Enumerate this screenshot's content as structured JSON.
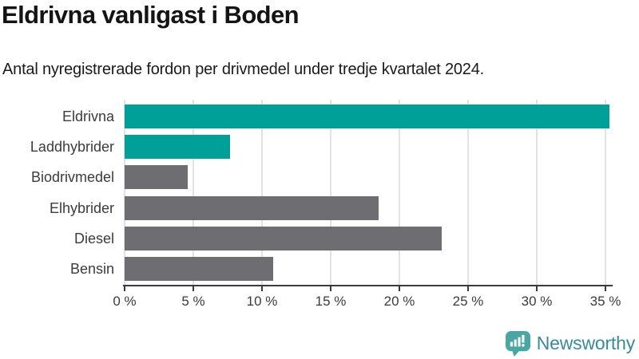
{
  "header": {
    "title": "Eldrivna vanligast i Boden",
    "subtitle": "Antal nyregistrerade fordon per drivmedel under tredje kvartalet 2024."
  },
  "chart_data": {
    "type": "bar",
    "orientation": "horizontal",
    "title": "Eldrivna vanligast i Boden",
    "subtitle": "Antal nyregistrerade fordon per drivmedel under tredje kvartalet 2024.",
    "categories": [
      "Eldrivna",
      "Laddhybrider",
      "Biodrivmedel",
      "Elhybrider",
      "Diesel",
      "Bensin"
    ],
    "values": [
      35.3,
      7.7,
      4.6,
      18.5,
      23.1,
      10.8
    ],
    "unit": "%",
    "xlabel": "",
    "ylabel": "",
    "xlim": [
      0,
      35.4
    ],
    "x_ticks": [
      0,
      5,
      10,
      15,
      20,
      25,
      30,
      35
    ],
    "x_tick_labels": [
      "0 %",
      "5 %",
      "10 %",
      "15 %",
      "20 %",
      "25 %",
      "30 %",
      "35 %"
    ],
    "grid": true,
    "legend": "none",
    "highlighted_categories": [
      "Eldrivna",
      "Laddhybrider"
    ],
    "colors": {
      "highlight": "#00a099",
      "default": "#6e6e72",
      "gridline": "#e2e2e2",
      "axis": "#3b3b3b",
      "label_text": "#3b3b3b"
    }
  },
  "footer": {
    "brand": "Newsworthy",
    "brand_icon": "newsworthy-speech-bubble-bar-chart",
    "brand_icon_color": "#4aa6a2",
    "brand_text_color": "#3a8b94"
  }
}
